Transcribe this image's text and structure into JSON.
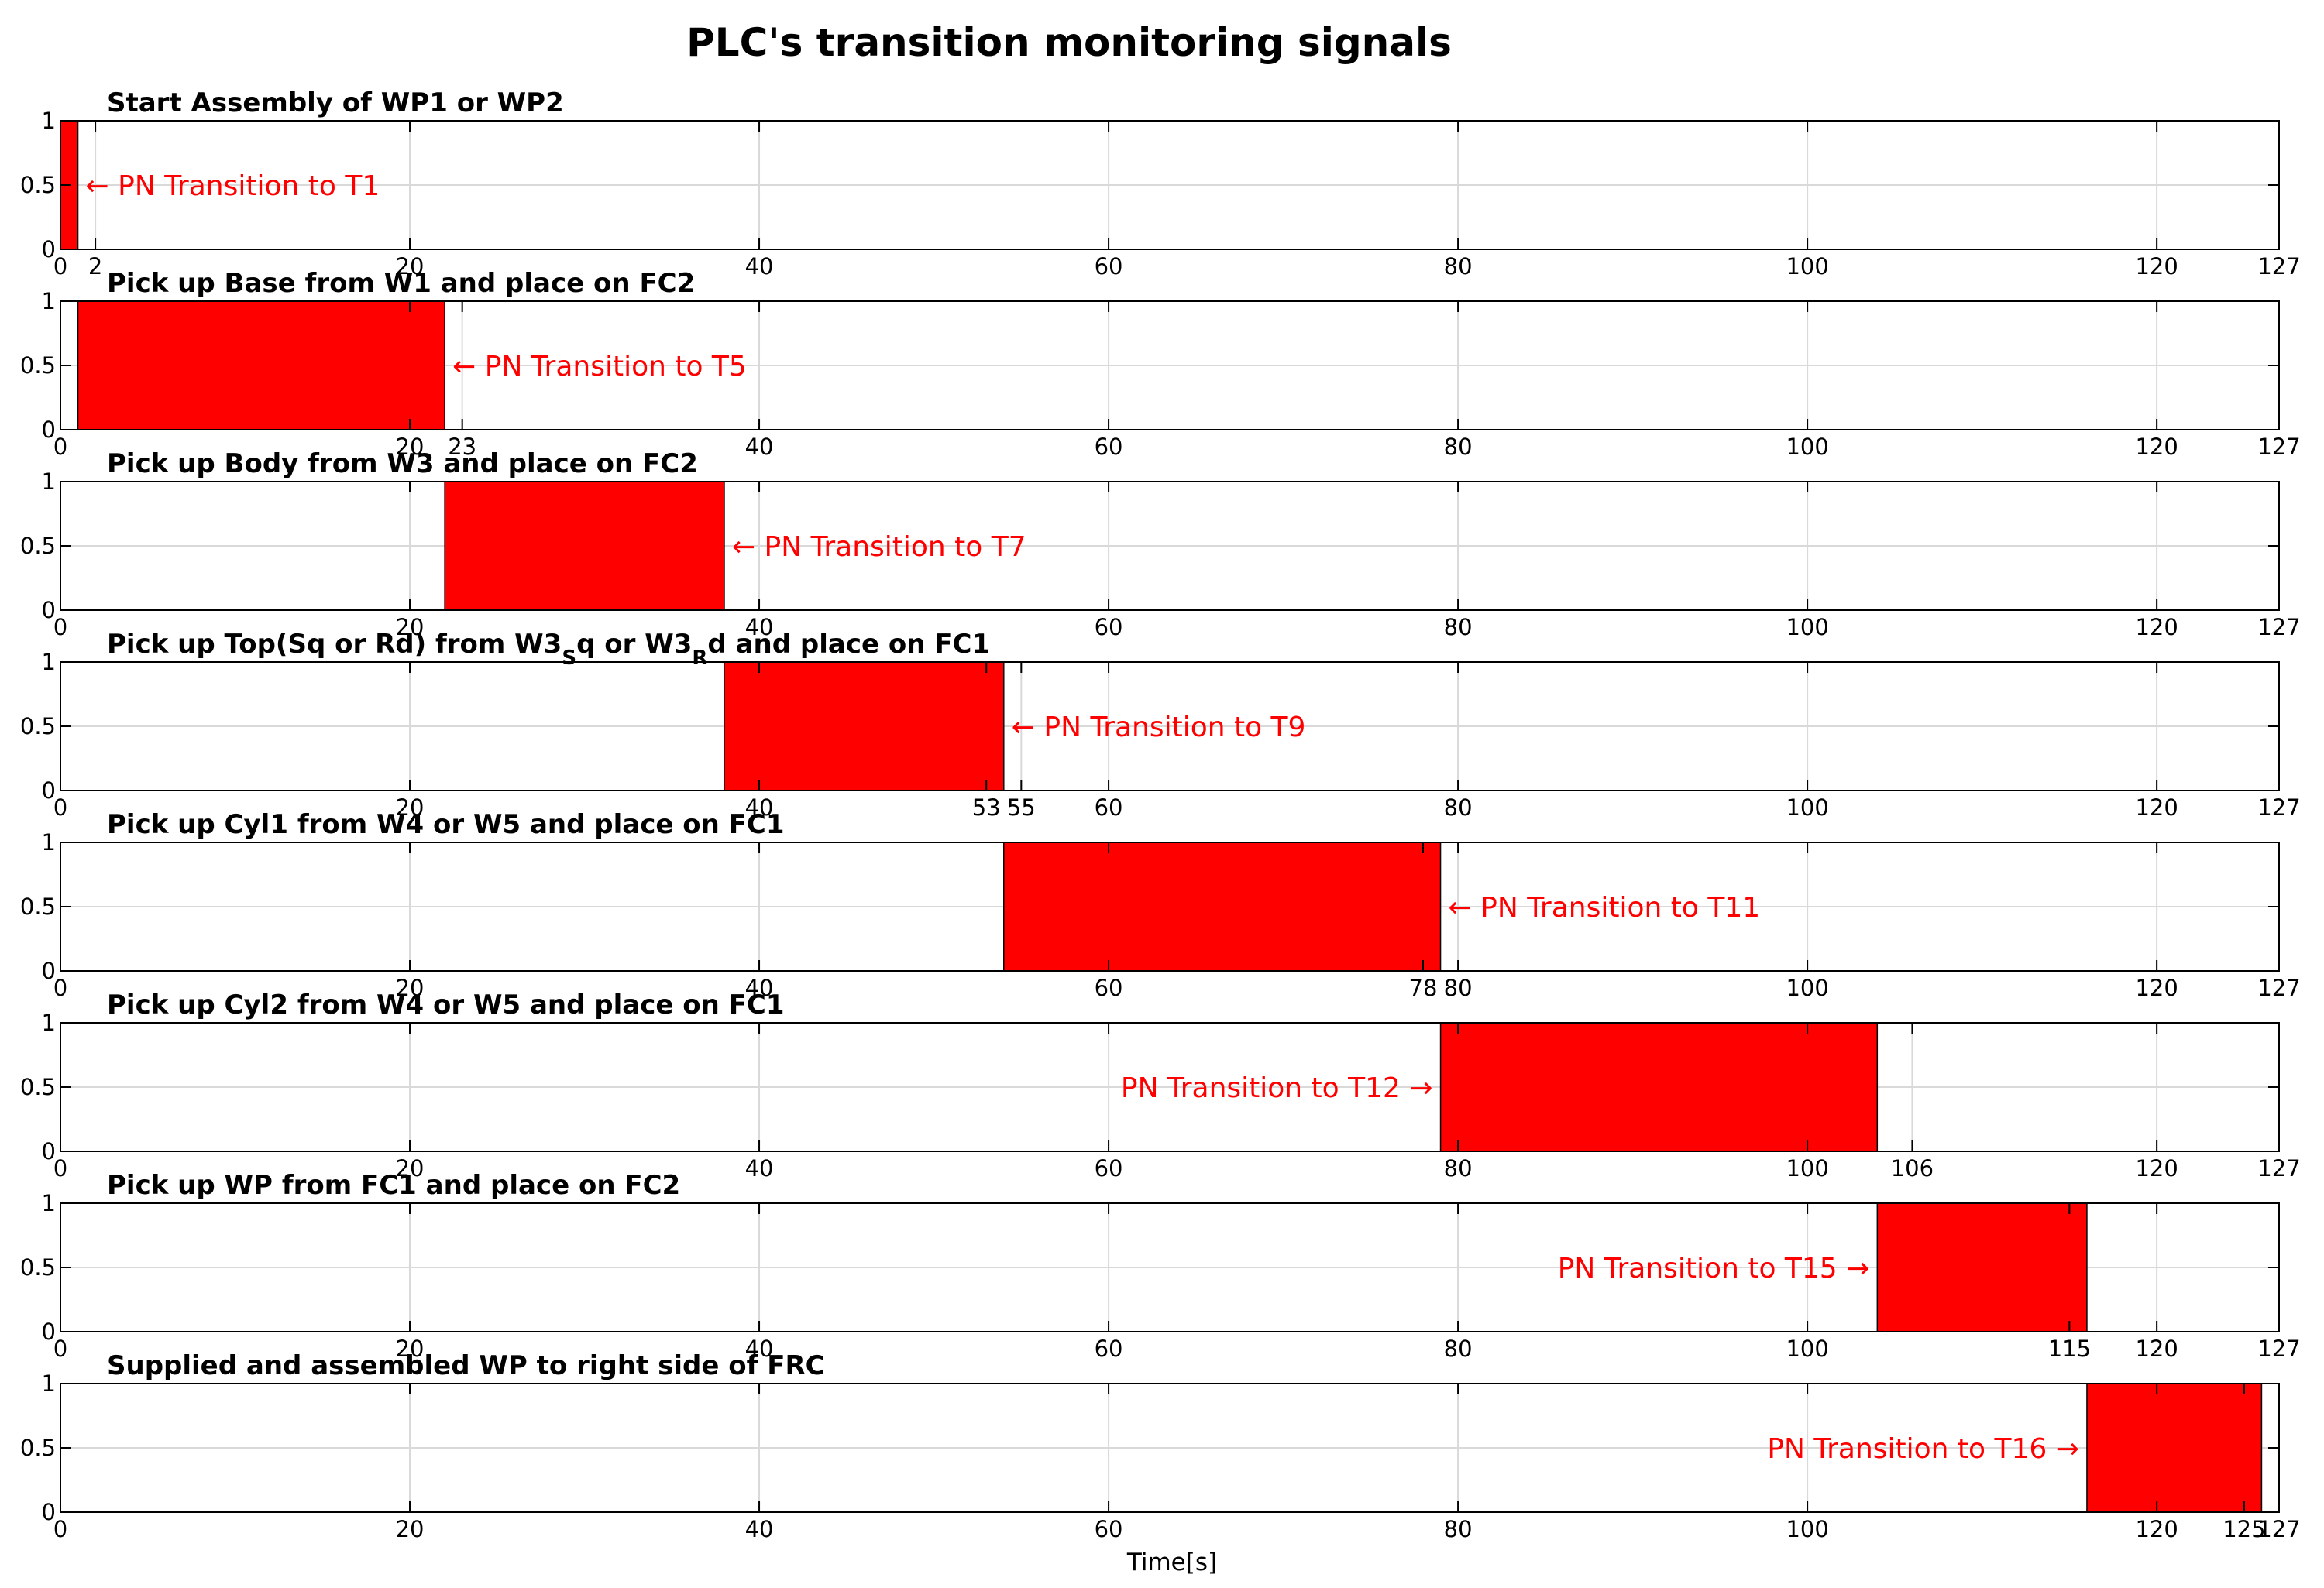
{
  "chart_data": {
    "type": "bar",
    "title": "PLC's transition monitoring signals",
    "xlabel": "Time[s]",
    "xlim": [
      0,
      127
    ],
    "ylim": [
      0,
      1
    ],
    "grid": true,
    "y_ticks": [
      "0",
      "0.5",
      "1"
    ],
    "x_ticks": [
      0,
      20,
      40,
      60,
      80,
      100,
      120,
      127
    ],
    "subplots": [
      {
        "title": "Start Assembly of WP1 or WP2",
        "start": 0,
        "end": 1,
        "value": 1,
        "annotation": "← PN Transition to T1",
        "annotation_side": "right",
        "annotation_x": 1,
        "extra_ticks": [
          2
        ]
      },
      {
        "title": "Pick up Base from W1 and place on FC2",
        "start": 1,
        "end": 22,
        "value": 1,
        "annotation": "← PN Transition to T5",
        "annotation_side": "right",
        "annotation_x": 22,
        "extra_ticks": [
          23
        ]
      },
      {
        "title": "Pick up Body from W3 and place on FC2",
        "start": 22,
        "end": 38,
        "value": 1,
        "annotation": "← PN Transition to T7",
        "annotation_side": "right",
        "annotation_x": 38,
        "extra_ticks": []
      },
      {
        "title": "Pick up Top(Sq or Rd) from W3",
        "title_sub1": "S",
        "title_mid": "q or W3",
        "title_sub2": "R",
        "title_end": "d and place on FC1",
        "start": 38,
        "end": 54,
        "value": 1,
        "annotation": "← PN Transition to T9",
        "annotation_side": "right",
        "annotation_x": 54,
        "extra_ticks": [
          53,
          55
        ]
      },
      {
        "title": "Pick up Cyl1 from W4 or W5 and place on FC1",
        "start": 54,
        "end": 79,
        "value": 1,
        "annotation": "← PN Transition to T11",
        "annotation_side": "right",
        "annotation_x": 79,
        "extra_ticks": [
          78
        ]
      },
      {
        "title": "Pick up Cyl2 from W4 or W5 and place on FC1",
        "start": 79,
        "end": 104,
        "value": 1,
        "annotation": "PN Transition to T12 →",
        "annotation_side": "left",
        "annotation_x": 79,
        "extra_ticks": [
          106
        ]
      },
      {
        "title": "Pick up WP from FC1 and place on FC2",
        "start": 104,
        "end": 116,
        "value": 1,
        "annotation": "PN Transition to T15 →",
        "annotation_side": "left",
        "annotation_x": 104,
        "extra_ticks": [
          115
        ]
      },
      {
        "title": "Supplied and assembled WP to right side of FRC",
        "start": 116,
        "end": 126,
        "value": 1,
        "annotation": "PN Transition to T16 →",
        "annotation_side": "left",
        "annotation_x": 116,
        "extra_ticks": [
          125
        ]
      }
    ]
  },
  "colors": {
    "bar": "#ff0000",
    "annotation": "#ff0000",
    "grid": "#d9d9d9"
  }
}
